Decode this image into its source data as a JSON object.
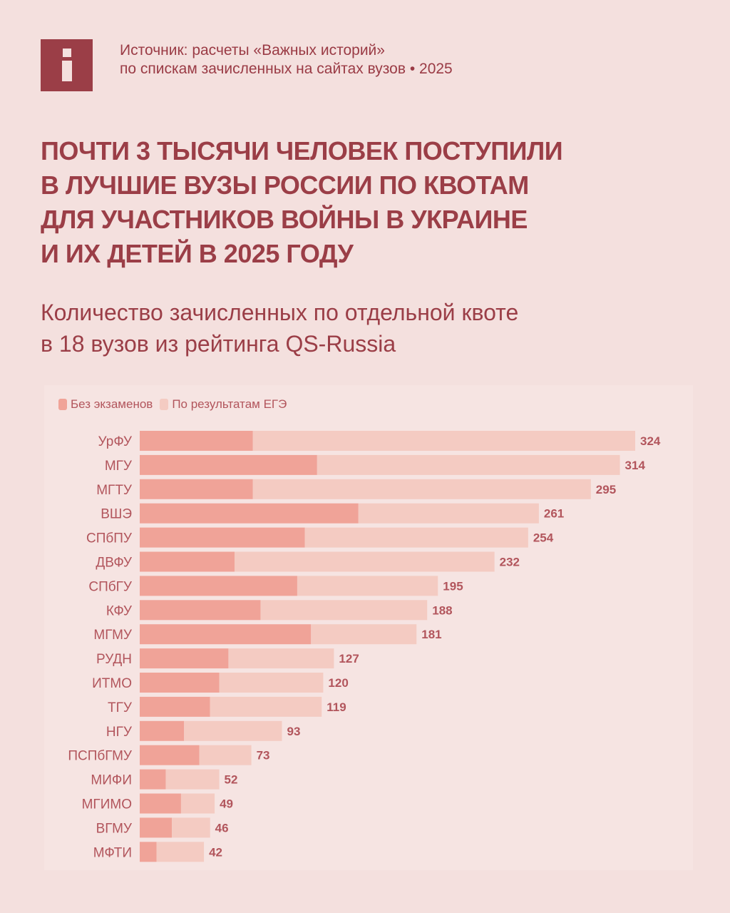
{
  "header": {
    "logo_icon": "info-i-icon",
    "source_lines": [
      "Источник: расчеты «Важных историй»",
      "по спискам зачисленных на сайтах вузов • 2025"
    ]
  },
  "title_lines": [
    "Почти 3 тысячи человек поступили",
    "в лучшие вузы России по квотам",
    "для участников войны в Украине",
    "и их детей в 2025 году"
  ],
  "subtitle_lines": [
    "Количество зачисленных по отдельной квоте",
    "в 18 вузов из рейтинга QS-Russia"
  ],
  "colors": {
    "no_exam": "#f0a398",
    "ege": "#f4cbc2",
    "text": "#9b3e47",
    "label": "#b2555c"
  },
  "chart_data": {
    "type": "bar",
    "orientation": "horizontal",
    "stacked": true,
    "legend_position": "top-left",
    "grid": false,
    "categories": [
      "УрФУ",
      "МГУ",
      "МГТУ",
      "ВШЭ",
      "СПбПУ",
      "ДВФУ",
      "СПбГУ",
      "КФУ",
      "МГМУ",
      "РУДН",
      "ИТМО",
      "ТГУ",
      "НГУ",
      "ПСПбГМУ",
      "МИФИ",
      "МГИМО",
      "ВГМУ",
      "МФТИ"
    ],
    "series": [
      {
        "name": "Без экзаменов",
        "values": [
          74,
          116,
          74,
          143,
          108,
          62,
          103,
          79,
          112,
          58,
          52,
          46,
          29,
          39,
          17,
          27,
          21,
          11
        ]
      },
      {
        "name": "По результатам ЕГЭ",
        "values": [
          250,
          198,
          221,
          118,
          146,
          170,
          92,
          109,
          69,
          69,
          68,
          73,
          64,
          34,
          35,
          22,
          25,
          31
        ]
      }
    ],
    "totals": [
      324,
      314,
      295,
      261,
      254,
      232,
      195,
      188,
      181,
      127,
      120,
      119,
      93,
      73,
      52,
      49,
      46,
      42
    ],
    "xlim": [
      0,
      324
    ]
  }
}
